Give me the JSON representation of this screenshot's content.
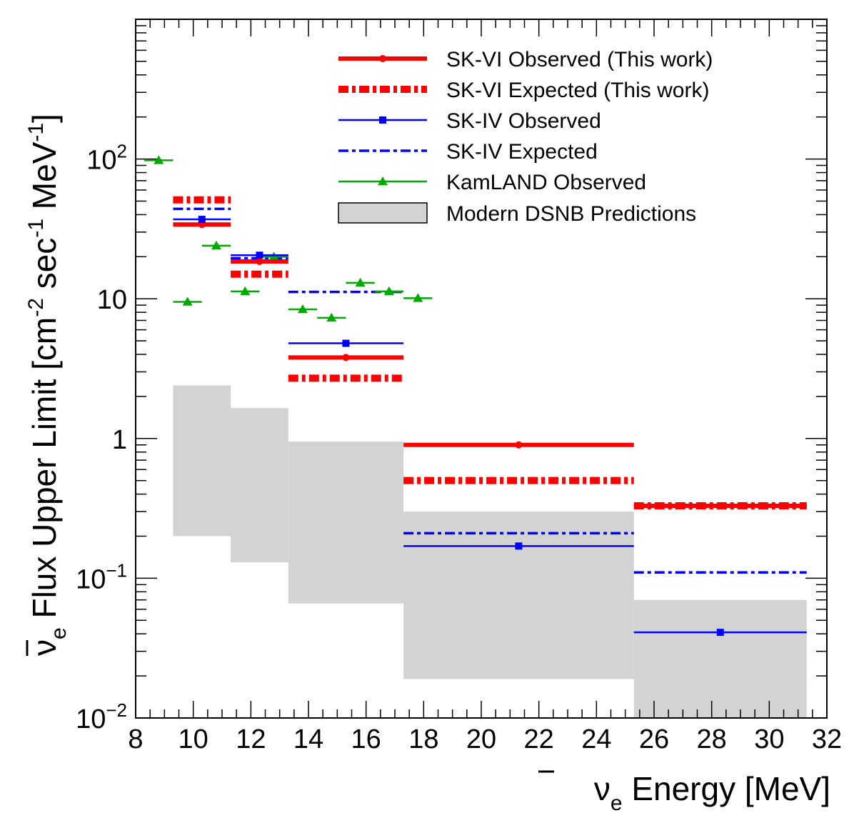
{
  "chart_data": {
    "type": "step",
    "xlabel": "ν̄e Energy [MeV]",
    "xlabel_parts": {
      "nu": "ν",
      "sub": "e",
      "rest": " Energy [MeV]"
    },
    "ylabel": "ν̄e Flux Upper Limit [cm-2 sec-1 MeV-1]",
    "ylabel_parts": {
      "nu": "ν",
      "sub": "e",
      "pre": " Flux Upper Limit [cm",
      "sup1": "-2",
      "mid": " sec",
      "sup2": "-1",
      "post": " MeV",
      "sup3": "-1",
      "end": "]"
    },
    "xlim": [
      8,
      32
    ],
    "ylim": [
      0.01,
      1000
    ],
    "yscale": "log",
    "x_ticks": [
      "8",
      "10",
      "12",
      "14",
      "16",
      "18",
      "20",
      "22",
      "24",
      "26",
      "28",
      "30",
      "32"
    ],
    "y_ticks": [
      {
        "value": 0.01,
        "base": "10",
        "exp": "−2"
      },
      {
        "value": 0.1,
        "base": "10",
        "exp": "−1"
      },
      {
        "value": 1,
        "base": "1",
        "exp": ""
      },
      {
        "value": 10,
        "base": "10",
        "exp": ""
      },
      {
        "value": 100,
        "base": "10",
        "exp": "2"
      }
    ],
    "series": [
      {
        "name": "Modern DSNB Predictions",
        "kind": "band",
        "color": "#d3d3d3",
        "bins": [
          [
            9.3,
            11.3
          ],
          [
            11.3,
            13.3
          ],
          [
            13.3,
            17.3
          ],
          [
            17.3,
            25.3
          ],
          [
            25.3,
            31.3
          ]
        ],
        "low": [
          0.2,
          0.13,
          0.066,
          0.019,
          0.01
        ],
        "high": [
          2.4,
          1.65,
          0.95,
          0.3,
          0.07
        ]
      },
      {
        "name": "SK-VI Observed (This work)",
        "kind": "observed_thick",
        "color": "#ff0000",
        "bins": [
          [
            9.3,
            11.3
          ],
          [
            11.3,
            13.3
          ],
          [
            13.3,
            17.3
          ],
          [
            17.3,
            25.3
          ],
          [
            25.3,
            31.3
          ]
        ],
        "centers": [
          10.3,
          12.3,
          15.3,
          21.3,
          28.3
        ],
        "values": [
          34,
          18.5,
          3.8,
          0.9,
          0.33
        ]
      },
      {
        "name": "SK-VI Expected (This work)",
        "kind": "expected_thick",
        "color": "#ff0000",
        "bins": [
          [
            9.3,
            11.3
          ],
          [
            11.3,
            13.3
          ],
          [
            13.3,
            17.3
          ],
          [
            17.3,
            25.3
          ],
          [
            25.3,
            31.3
          ]
        ],
        "values": [
          51,
          15,
          2.7,
          0.5,
          0.33
        ]
      },
      {
        "name": "SK-IV Observed",
        "kind": "observed_thin",
        "color": "#0000ff",
        "bins": [
          [
            9.3,
            11.3
          ],
          [
            11.3,
            13.3
          ],
          [
            13.3,
            17.3
          ],
          [
            17.3,
            25.3
          ],
          [
            25.3,
            31.3
          ]
        ],
        "centers": [
          10.3,
          12.3,
          15.3,
          21.3,
          28.3
        ],
        "values": [
          37,
          20.5,
          4.8,
          0.17,
          0.041
        ]
      },
      {
        "name": "SK-IV Expected",
        "kind": "expected_thin",
        "color": "#0000ff",
        "bins": [
          [
            9.3,
            11.3
          ],
          [
            11.3,
            13.3
          ],
          [
            13.3,
            17.3
          ],
          [
            17.3,
            25.3
          ],
          [
            25.3,
            31.3
          ]
        ],
        "values": [
          44,
          19.5,
          11.2,
          0.21,
          0.11
        ]
      },
      {
        "name": "KamLAND Observed",
        "kind": "triangles",
        "color": "#00aa00",
        "bins": [
          [
            8.3,
            9.3
          ],
          [
            9.3,
            10.3
          ],
          [
            10.3,
            11.3
          ],
          [
            11.3,
            12.3
          ],
          [
            12.3,
            13.3
          ],
          [
            13.3,
            14.3
          ],
          [
            14.3,
            15.3
          ],
          [
            15.3,
            16.3
          ],
          [
            16.3,
            17.3
          ],
          [
            17.3,
            18.3
          ]
        ],
        "centers": [
          8.8,
          9.8,
          10.8,
          11.8,
          12.8,
          13.8,
          14.8,
          15.8,
          16.8,
          17.8
        ],
        "values": [
          98,
          9.5,
          24,
          11.3,
          20,
          8.4,
          7.3,
          13,
          11.3,
          10.1
        ]
      }
    ],
    "legend": [
      {
        "label": "SK-VI Observed (This work)",
        "style": "observed_thick",
        "color": "#ff0000"
      },
      {
        "label": "SK-VI Expected (This work)",
        "style": "expected_thick",
        "color": "#ff0000"
      },
      {
        "label": "SK-IV Observed",
        "style": "observed_thin",
        "color": "#0000ff"
      },
      {
        "label": "SK-IV Expected",
        "style": "expected_thin",
        "color": "#0000ff"
      },
      {
        "label": "KamLAND Observed",
        "style": "triangles",
        "color": "#00aa00"
      },
      {
        "label": "Modern DSNB Predictions",
        "style": "band",
        "color": "#d3d3d3"
      }
    ],
    "legend_position": "top-right"
  }
}
